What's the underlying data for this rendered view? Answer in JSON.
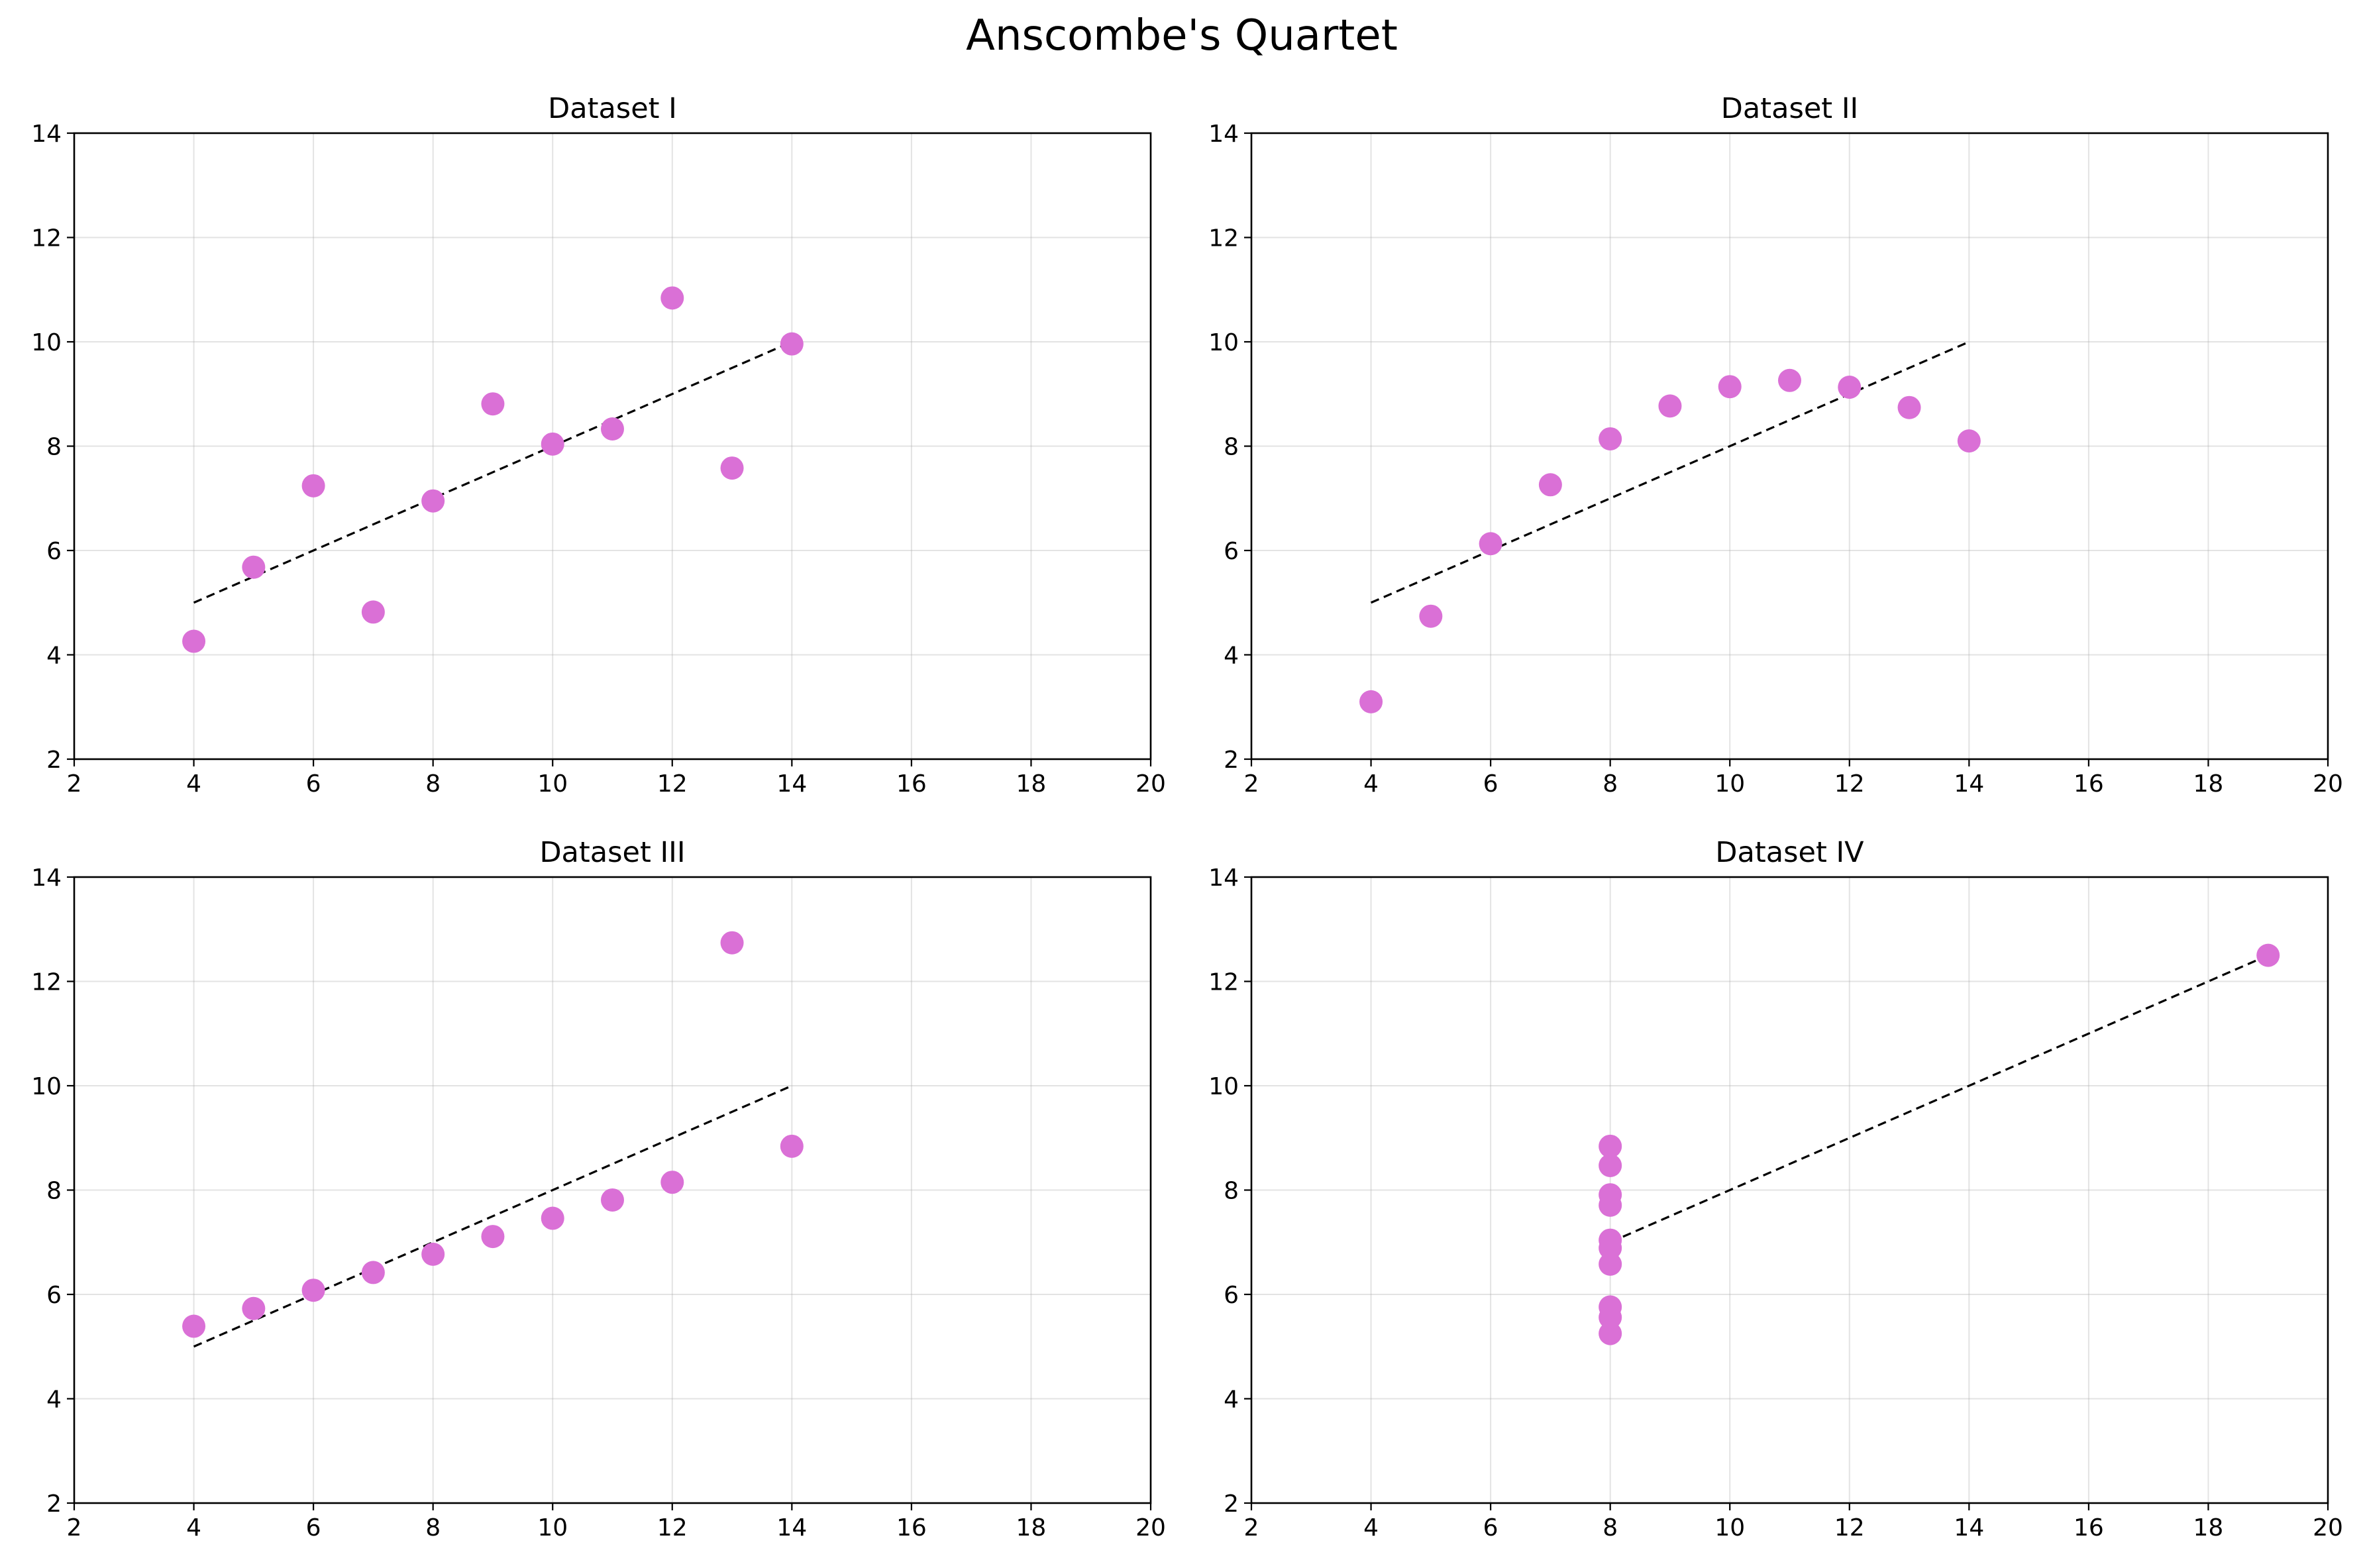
{
  "title": "Anscombe's Quartet",
  "colors": {
    "point": "#DA70D6",
    "fit_line": "#000000",
    "grid": "#b0b0b0",
    "axes": "#000000"
  },
  "chart_data": [
    {
      "type": "scatter",
      "title": "Dataset I",
      "xlim": [
        2,
        20
      ],
      "ylim": [
        2,
        14
      ],
      "xticks": [
        2,
        4,
        6,
        8,
        10,
        12,
        14,
        16,
        18,
        20
      ],
      "yticks": [
        2,
        4,
        6,
        8,
        10,
        12,
        14
      ],
      "grid": true,
      "points": {
        "x": [
          10,
          8,
          13,
          9,
          11,
          14,
          6,
          4,
          12,
          7,
          5
        ],
        "y": [
          8.04,
          6.95,
          7.58,
          8.81,
          8.33,
          9.96,
          7.24,
          4.26,
          10.84,
          4.82,
          5.68
        ]
      },
      "fit_line": {
        "x": [
          4,
          14
        ],
        "y": [
          5.0,
          10.0
        ],
        "style": "dashed"
      }
    },
    {
      "type": "scatter",
      "title": "Dataset II",
      "xlim": [
        2,
        20
      ],
      "ylim": [
        2,
        14
      ],
      "xticks": [
        2,
        4,
        6,
        8,
        10,
        12,
        14,
        16,
        18,
        20
      ],
      "yticks": [
        2,
        4,
        6,
        8,
        10,
        12,
        14
      ],
      "grid": true,
      "points": {
        "x": [
          10,
          8,
          13,
          9,
          11,
          14,
          6,
          4,
          12,
          7,
          5
        ],
        "y": [
          9.14,
          8.14,
          8.74,
          8.77,
          9.26,
          8.1,
          6.13,
          3.1,
          9.13,
          7.26,
          4.74
        ]
      },
      "fit_line": {
        "x": [
          4,
          14
        ],
        "y": [
          5.0,
          10.0
        ],
        "style": "dashed"
      }
    },
    {
      "type": "scatter",
      "title": "Dataset III",
      "xlim": [
        2,
        20
      ],
      "ylim": [
        2,
        14
      ],
      "xticks": [
        2,
        4,
        6,
        8,
        10,
        12,
        14,
        16,
        18,
        20
      ],
      "yticks": [
        2,
        4,
        6,
        8,
        10,
        12,
        14
      ],
      "grid": true,
      "points": {
        "x": [
          10,
          8,
          13,
          9,
          11,
          14,
          6,
          4,
          12,
          7,
          5
        ],
        "y": [
          7.46,
          6.77,
          12.74,
          7.11,
          7.81,
          8.84,
          6.08,
          5.39,
          8.15,
          6.42,
          5.73
        ]
      },
      "fit_line": {
        "x": [
          4,
          14
        ],
        "y": [
          5.0,
          10.0
        ],
        "style": "dashed"
      }
    },
    {
      "type": "scatter",
      "title": "Dataset IV",
      "xlim": [
        2,
        20
      ],
      "ylim": [
        2,
        14
      ],
      "xticks": [
        2,
        4,
        6,
        8,
        10,
        12,
        14,
        16,
        18,
        20
      ],
      "yticks": [
        2,
        4,
        6,
        8,
        10,
        12,
        14
      ],
      "grid": true,
      "points": {
        "x": [
          8,
          8,
          8,
          8,
          8,
          8,
          8,
          19,
          8,
          8,
          8
        ],
        "y": [
          6.58,
          5.76,
          7.71,
          8.84,
          8.47,
          7.04,
          5.25,
          12.5,
          5.56,
          7.91,
          6.89
        ]
      },
      "fit_line": {
        "x": [
          8,
          19
        ],
        "y": [
          7.0,
          12.5
        ],
        "style": "dashed"
      }
    }
  ]
}
